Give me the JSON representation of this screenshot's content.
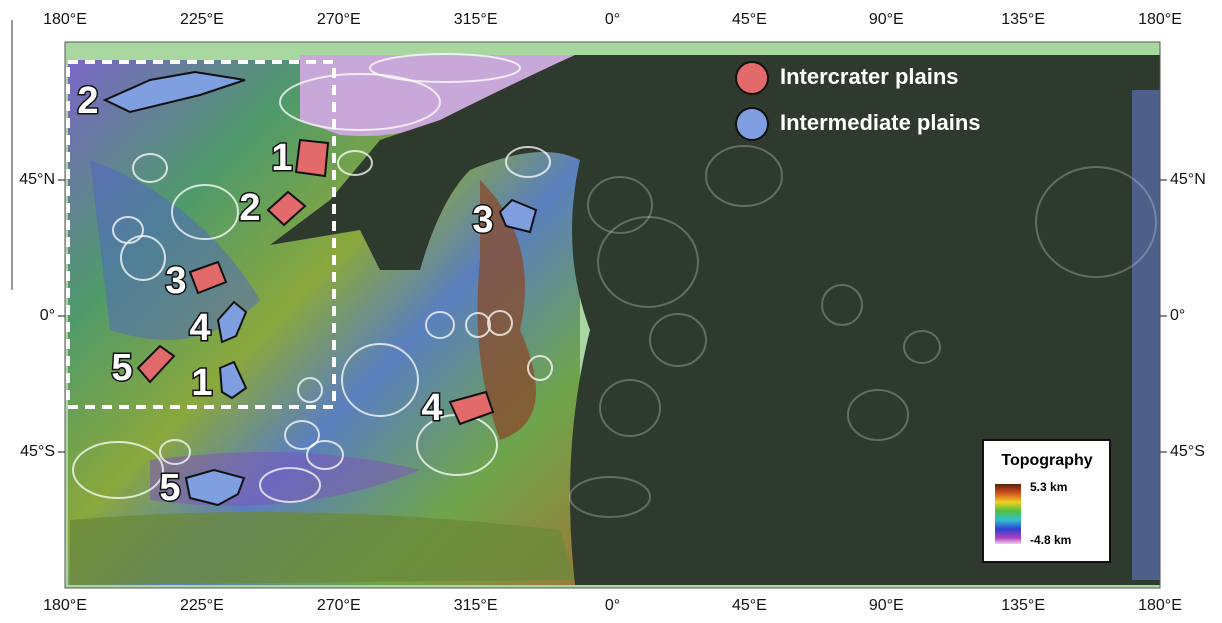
{
  "lon_labels": [
    "180°E",
    "225°E",
    "270°E",
    "315°E",
    "0°",
    "45°E",
    "90°E",
    "135°E",
    "180°E"
  ],
  "lat_labels": [
    "45°N",
    "0°",
    "45°S"
  ],
  "legend": {
    "items": [
      "Intercrater plains",
      "Intermediate plains"
    ]
  },
  "regions": {
    "intercrater": [
      "1",
      "2",
      "3",
      "4",
      "5"
    ],
    "intermediate": [
      "1",
      "2",
      "3",
      "4",
      "5"
    ]
  },
  "topography": {
    "title": "Topography",
    "max": "5.3 km",
    "min": "-4.8 km"
  }
}
